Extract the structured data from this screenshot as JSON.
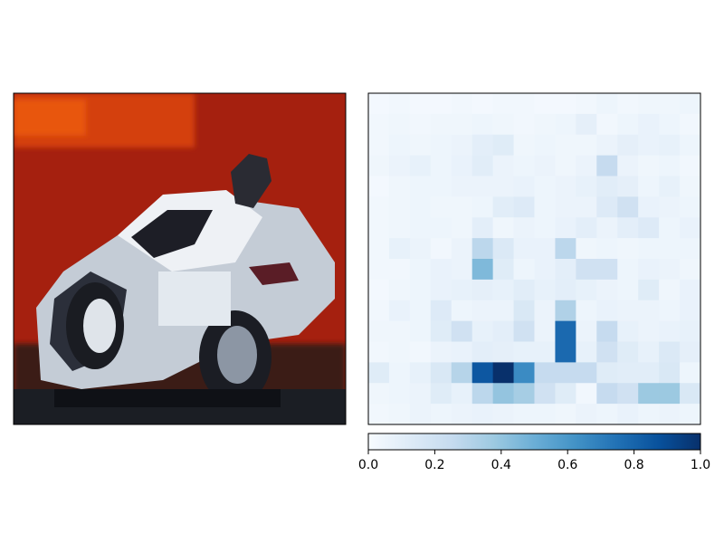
{
  "chart_data": [
    {
      "type": "image",
      "subject": "pixelated photo of a white car with a red background"
    },
    {
      "type": "heatmap",
      "rows": 16,
      "cols": 16,
      "colormap": "Blues",
      "vmin": 0,
      "vmax": 1,
      "values": [
        [
          0.02,
          0.03,
          0.02,
          0.02,
          0.03,
          0.02,
          0.03,
          0.03,
          0.02,
          0.02,
          0.03,
          0.05,
          0.03,
          0.04,
          0.04,
          0.05
        ],
        [
          0.03,
          0.04,
          0.03,
          0.04,
          0.04,
          0.05,
          0.04,
          0.03,
          0.04,
          0.05,
          0.09,
          0.03,
          0.05,
          0.07,
          0.05,
          0.03
        ],
        [
          0.03,
          0.05,
          0.04,
          0.05,
          0.06,
          0.1,
          0.12,
          0.04,
          0.05,
          0.04,
          0.04,
          0.06,
          0.09,
          0.07,
          0.08,
          0.05
        ],
        [
          0.04,
          0.06,
          0.08,
          0.05,
          0.07,
          0.11,
          0.06,
          0.05,
          0.06,
          0.04,
          0.06,
          0.25,
          0.06,
          0.04,
          0.05,
          0.03
        ],
        [
          0.02,
          0.04,
          0.05,
          0.05,
          0.06,
          0.06,
          0.06,
          0.07,
          0.05,
          0.06,
          0.08,
          0.11,
          0.09,
          0.05,
          0.08,
          0.04
        ],
        [
          0.03,
          0.04,
          0.05,
          0.04,
          0.04,
          0.05,
          0.11,
          0.13,
          0.05,
          0.06,
          0.06,
          0.13,
          0.2,
          0.07,
          0.06,
          0.05
        ],
        [
          0.03,
          0.04,
          0.05,
          0.05,
          0.04,
          0.1,
          0.04,
          0.06,
          0.05,
          0.07,
          0.1,
          0.06,
          0.1,
          0.13,
          0.05,
          0.07
        ],
        [
          0.03,
          0.08,
          0.06,
          0.03,
          0.06,
          0.28,
          0.14,
          0.07,
          0.07,
          0.28,
          0.04,
          0.05,
          0.04,
          0.05,
          0.05,
          0.05
        ],
        [
          0.03,
          0.03,
          0.05,
          0.07,
          0.06,
          0.45,
          0.12,
          0.05,
          0.07,
          0.1,
          0.2,
          0.2,
          0.05,
          0.07,
          0.06,
          0.04
        ],
        [
          0.02,
          0.04,
          0.05,
          0.07,
          0.08,
          0.09,
          0.08,
          0.11,
          0.08,
          0.1,
          0.08,
          0.06,
          0.05,
          0.12,
          0.04,
          0.07
        ],
        [
          0.03,
          0.07,
          0.05,
          0.13,
          0.05,
          0.06,
          0.06,
          0.15,
          0.06,
          0.32,
          0.05,
          0.07,
          0.06,
          0.06,
          0.05,
          0.07
        ],
        [
          0.04,
          0.04,
          0.05,
          0.12,
          0.2,
          0.08,
          0.1,
          0.2,
          0.06,
          0.78,
          0.06,
          0.25,
          0.08,
          0.06,
          0.07,
          0.08
        ],
        [
          0.03,
          0.04,
          0.03,
          0.06,
          0.07,
          0.1,
          0.09,
          0.08,
          0.08,
          0.78,
          0.08,
          0.2,
          0.12,
          0.08,
          0.14,
          0.09
        ],
        [
          0.12,
          0.05,
          0.08,
          0.15,
          0.3,
          0.85,
          1.0,
          0.65,
          0.25,
          0.25,
          0.25,
          0.12,
          0.11,
          0.11,
          0.15,
          0.05
        ],
        [
          0.04,
          0.05,
          0.06,
          0.12,
          0.08,
          0.28,
          0.4,
          0.35,
          0.2,
          0.12,
          0.03,
          0.25,
          0.2,
          0.38,
          0.38,
          0.15
        ],
        [
          0.03,
          0.04,
          0.06,
          0.05,
          0.06,
          0.07,
          0.06,
          0.05,
          0.05,
          0.04,
          0.06,
          0.05,
          0.07,
          0.05,
          0.06,
          0.05
        ]
      ],
      "colorbar": {
        "orientation": "horizontal",
        "range": [
          0,
          1
        ],
        "tick_values": [
          0.0,
          0.2,
          0.4,
          0.6,
          0.8,
          1.0
        ],
        "tick_labels": [
          "0.0",
          "0.2",
          "0.4",
          "0.6",
          "0.8",
          "1.0"
        ]
      }
    }
  ]
}
